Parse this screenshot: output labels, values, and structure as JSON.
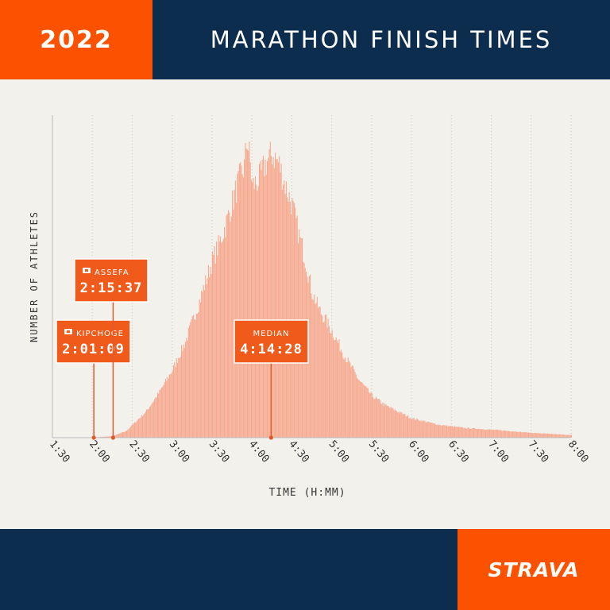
{
  "header": {
    "year": "2022",
    "title": "MARATHON FINISH TIMES"
  },
  "footer": {
    "logo": "STRAVA"
  },
  "colors": {
    "orange": "#fc5200",
    "navy": "#0d2d4e",
    "bar": "#f7a98f",
    "background": "#f3f1ec"
  },
  "chart_data": {
    "type": "bar",
    "title": "MARATHON FINISH TIMES",
    "xlabel": "TIME (H:MM)",
    "ylabel": "NUMBER OF ATHLETES",
    "x_unit": "minutes",
    "xlim": [
      90,
      480
    ],
    "ylim": [
      0,
      100
    ],
    "ticks": [
      "1:30",
      "2:00",
      "2:30",
      "3:00",
      "3:30",
      "4:00",
      "4:30",
      "5:00",
      "5:30",
      "6:00",
      "6:30",
      "7:00",
      "7:30",
      "8:00"
    ],
    "grid": "vertical dotted",
    "distribution_points": [
      [
        120,
        0
      ],
      [
        135,
        0.5
      ],
      [
        145,
        2
      ],
      [
        150,
        4
      ],
      [
        160,
        8
      ],
      [
        170,
        14
      ],
      [
        180,
        21
      ],
      [
        190,
        30
      ],
      [
        200,
        42
      ],
      [
        210,
        55
      ],
      [
        215,
        60
      ],
      [
        220,
        66
      ],
      [
        225,
        73
      ],
      [
        230,
        80
      ],
      [
        234,
        84
      ],
      [
        236,
        93
      ],
      [
        238,
        87
      ],
      [
        240,
        78
      ],
      [
        245,
        80
      ],
      [
        250,
        85
      ],
      [
        255,
        88
      ],
      [
        260,
        85
      ],
      [
        265,
        78
      ],
      [
        270,
        72
      ],
      [
        275,
        63
      ],
      [
        280,
        55
      ],
      [
        285,
        45
      ],
      [
        290,
        40
      ],
      [
        300,
        33
      ],
      [
        310,
        25
      ],
      [
        320,
        18
      ],
      [
        330,
        13
      ],
      [
        340,
        10
      ],
      [
        350,
        8
      ],
      [
        360,
        6
      ],
      [
        380,
        4
      ],
      [
        400,
        3
      ],
      [
        420,
        2.5
      ],
      [
        450,
        1.5
      ],
      [
        480,
        0.8
      ]
    ],
    "annotations": [
      {
        "name": "KIPCHOGE",
        "time": "2:01:09",
        "minutes": 121.15
      },
      {
        "name": "ASSEFA",
        "time": "2:15:37",
        "minutes": 135.62
      },
      {
        "name": "MEDIAN",
        "time": "4:14:28",
        "minutes": 254.47
      }
    ]
  }
}
